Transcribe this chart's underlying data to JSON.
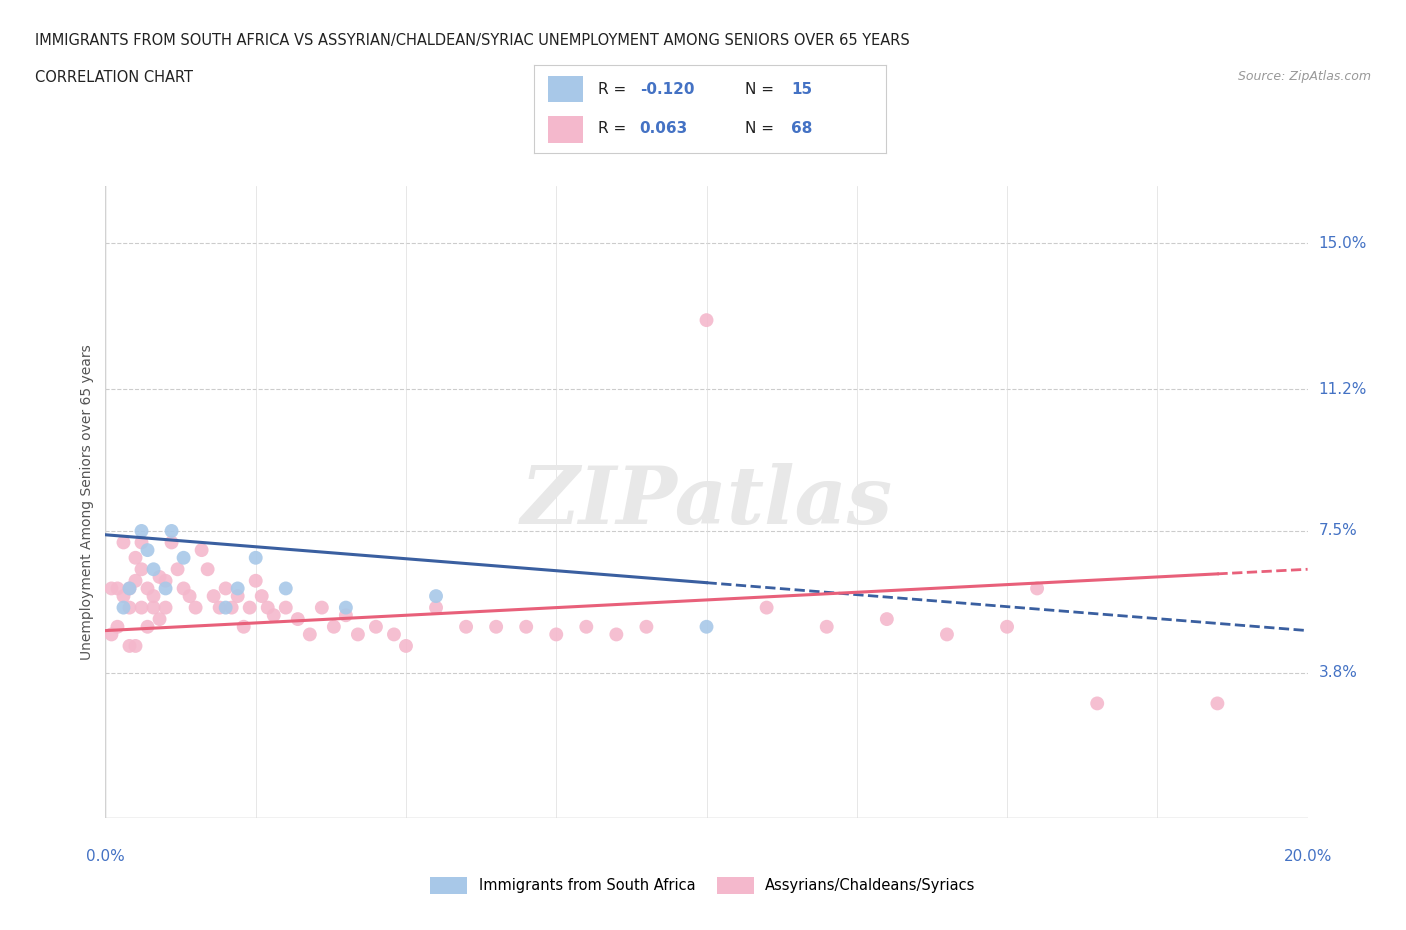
{
  "title_line1": "IMMIGRANTS FROM SOUTH AFRICA VS ASSYRIAN/CHALDEAN/SYRIAC UNEMPLOYMENT AMONG SENIORS OVER 65 YEARS",
  "title_line2": "CORRELATION CHART",
  "source_text": "Source: ZipAtlas.com",
  "ylabel": "Unemployment Among Seniors over 65 years",
  "ytick_labels": [
    "3.8%",
    "7.5%",
    "11.2%",
    "15.0%"
  ],
  "ytick_values": [
    0.038,
    0.075,
    0.112,
    0.15
  ],
  "xlim": [
    0.0,
    0.2
  ],
  "ylim": [
    0.0,
    0.165
  ],
  "watermark": "ZIPatlas",
  "blue_scatter_x": [
    0.003,
    0.004,
    0.006,
    0.007,
    0.008,
    0.01,
    0.011,
    0.013,
    0.02,
    0.022,
    0.025,
    0.03,
    0.04,
    0.055,
    0.1
  ],
  "blue_scatter_y": [
    0.055,
    0.06,
    0.075,
    0.07,
    0.065,
    0.06,
    0.075,
    0.068,
    0.055,
    0.06,
    0.068,
    0.06,
    0.055,
    0.058,
    0.05
  ],
  "pink_scatter_x": [
    0.001,
    0.001,
    0.002,
    0.002,
    0.003,
    0.003,
    0.004,
    0.004,
    0.004,
    0.005,
    0.005,
    0.005,
    0.006,
    0.006,
    0.006,
    0.007,
    0.007,
    0.008,
    0.008,
    0.009,
    0.009,
    0.01,
    0.01,
    0.011,
    0.012,
    0.013,
    0.014,
    0.015,
    0.016,
    0.017,
    0.018,
    0.019,
    0.02,
    0.021,
    0.022,
    0.023,
    0.024,
    0.025,
    0.026,
    0.027,
    0.028,
    0.03,
    0.032,
    0.034,
    0.036,
    0.038,
    0.04,
    0.042,
    0.045,
    0.048,
    0.05,
    0.055,
    0.06,
    0.065,
    0.07,
    0.075,
    0.08,
    0.085,
    0.09,
    0.1,
    0.11,
    0.12,
    0.13,
    0.14,
    0.15,
    0.155,
    0.165,
    0.185
  ],
  "pink_scatter_y": [
    0.06,
    0.048,
    0.06,
    0.05,
    0.072,
    0.058,
    0.06,
    0.055,
    0.045,
    0.068,
    0.062,
    0.045,
    0.072,
    0.065,
    0.055,
    0.06,
    0.05,
    0.058,
    0.055,
    0.063,
    0.052,
    0.062,
    0.055,
    0.072,
    0.065,
    0.06,
    0.058,
    0.055,
    0.07,
    0.065,
    0.058,
    0.055,
    0.06,
    0.055,
    0.058,
    0.05,
    0.055,
    0.062,
    0.058,
    0.055,
    0.053,
    0.055,
    0.052,
    0.048,
    0.055,
    0.05,
    0.053,
    0.048,
    0.05,
    0.048,
    0.045,
    0.055,
    0.05,
    0.05,
    0.05,
    0.048,
    0.05,
    0.048,
    0.05,
    0.13,
    0.055,
    0.05,
    0.052,
    0.048,
    0.05,
    0.06,
    0.03,
    0.03
  ],
  "blue_color": "#a8c8e8",
  "pink_color": "#f4b8cc",
  "blue_line_color": "#3a5fa0",
  "pink_line_color": "#e8607a",
  "blue_R": -0.12,
  "blue_N": 15,
  "pink_R": 0.063,
  "pink_N": 68,
  "legend_label_blue": "Immigrants from South Africa",
  "legend_label_pink": "Assyrians/Chaldeans/Syriacs"
}
